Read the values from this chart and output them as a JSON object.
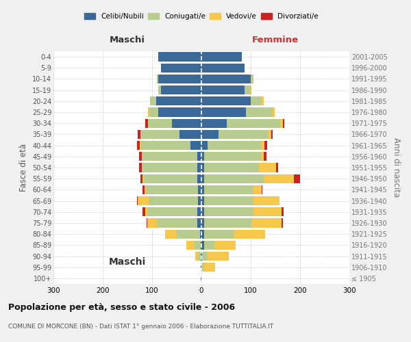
{
  "age_groups": [
    "100+",
    "95-99",
    "90-94",
    "85-89",
    "80-84",
    "75-79",
    "70-74",
    "65-69",
    "60-64",
    "55-59",
    "50-54",
    "45-49",
    "40-44",
    "35-39",
    "30-34",
    "25-29",
    "20-24",
    "15-19",
    "10-14",
    "5-9",
    "0-4"
  ],
  "birth_years": [
    "≤ 1905",
    "1906-1910",
    "1911-1915",
    "1916-1920",
    "1921-1925",
    "1926-1930",
    "1931-1935",
    "1936-1940",
    "1941-1945",
    "1946-1950",
    "1951-1955",
    "1956-1960",
    "1961-1965",
    "1966-1970",
    "1971-1975",
    "1976-1980",
    "1981-1985",
    "1986-1990",
    "1991-1995",
    "1996-2000",
    "2001-2005"
  ],
  "maschi": {
    "celibi": [
      1,
      1,
      1,
      2,
      3,
      8,
      8,
      7,
      7,
      8,
      8,
      8,
      22,
      45,
      60,
      88,
      92,
      82,
      88,
      82,
      88
    ],
    "coniugati": [
      0,
      1,
      6,
      12,
      48,
      82,
      100,
      100,
      105,
      108,
      112,
      112,
      102,
      78,
      48,
      18,
      12,
      6,
      2,
      0,
      0
    ],
    "vedovi": [
      0,
      0,
      6,
      16,
      22,
      20,
      6,
      22,
      3,
      3,
      1,
      1,
      1,
      1,
      1,
      2,
      0,
      0,
      0,
      0,
      0
    ],
    "divorziati": [
      0,
      0,
      0,
      0,
      0,
      1,
      5,
      1,
      5,
      5,
      5,
      5,
      5,
      5,
      5,
      1,
      0,
      0,
      0,
      0,
      0
    ]
  },
  "femmine": {
    "nubili": [
      0,
      0,
      1,
      5,
      5,
      6,
      6,
      6,
      6,
      6,
      6,
      6,
      12,
      35,
      52,
      90,
      100,
      88,
      100,
      88,
      82
    ],
    "coniugate": [
      0,
      6,
      12,
      22,
      62,
      95,
      100,
      100,
      100,
      120,
      110,
      115,
      110,
      100,
      108,
      55,
      22,
      12,
      6,
      0,
      0
    ],
    "vedove": [
      0,
      22,
      42,
      42,
      62,
      62,
      56,
      52,
      16,
      62,
      36,
      6,
      6,
      6,
      5,
      3,
      5,
      1,
      0,
      0,
      0
    ],
    "divorziate": [
      0,
      0,
      0,
      0,
      0,
      2,
      5,
      1,
      2,
      12,
      3,
      5,
      5,
      3,
      3,
      1,
      0,
      0,
      0,
      0,
      0
    ]
  },
  "colors": {
    "celibi_nubili": "#3a6898",
    "coniugati": "#b8cc90",
    "vedovi": "#f5c84c",
    "divorziati": "#cc2222"
  },
  "title": "Popolazione per età, sesso e stato civile - 2006",
  "subtitle": "COMUNE DI MORCONE (BN) - Dati ISTAT 1° gennaio 2006 - Elaborazione TUTTITALIA.IT",
  "xlabel_left": "Maschi",
  "xlabel_right": "Femmine",
  "ylabel_left": "Fasce di età",
  "ylabel_right": "Anni di nascita",
  "xlim": 300,
  "bg_color": "#f0f0f0",
  "plot_bg": "#ffffff",
  "grid_color": "#cccccc"
}
